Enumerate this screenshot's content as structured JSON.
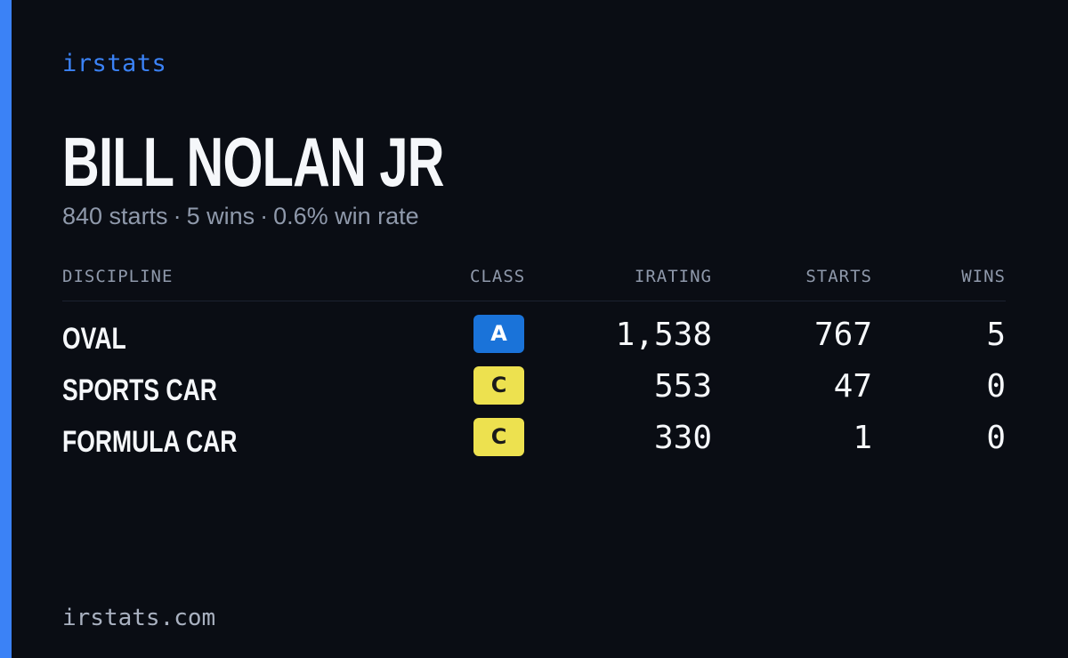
{
  "brand": "irstats",
  "driver": {
    "name": "BILL NOLAN JR"
  },
  "summary": {
    "starts": "840 starts",
    "wins": "5 wins",
    "win_rate": "0.6% win rate",
    "separator": "·"
  },
  "table": {
    "headers": {
      "discipline": "DISCIPLINE",
      "class": "CLASS",
      "irating": "IRATING",
      "starts": "STARTS",
      "wins": "WINS"
    },
    "rows": [
      {
        "discipline": "OVAL",
        "class": "A",
        "class_color": "#1a73d9",
        "class_text_color": "#ffffff",
        "irating": "1,538",
        "starts": "767",
        "wins": "5"
      },
      {
        "discipline": "SPORTS CAR",
        "class": "C",
        "class_color": "#ede14f",
        "class_text_color": "#1a1a1a",
        "irating": "553",
        "starts": "47",
        "wins": "0"
      },
      {
        "discipline": "FORMULA CAR",
        "class": "C",
        "class_color": "#ede14f",
        "class_text_color": "#1a1a1a",
        "irating": "330",
        "starts": "1",
        "wins": "0"
      }
    ]
  },
  "footer": "irstats.com",
  "colors": {
    "background": "#0a0d14",
    "accent": "#3b82f6",
    "text_primary": "#f5f7fa",
    "text_muted": "#8f99ab"
  }
}
